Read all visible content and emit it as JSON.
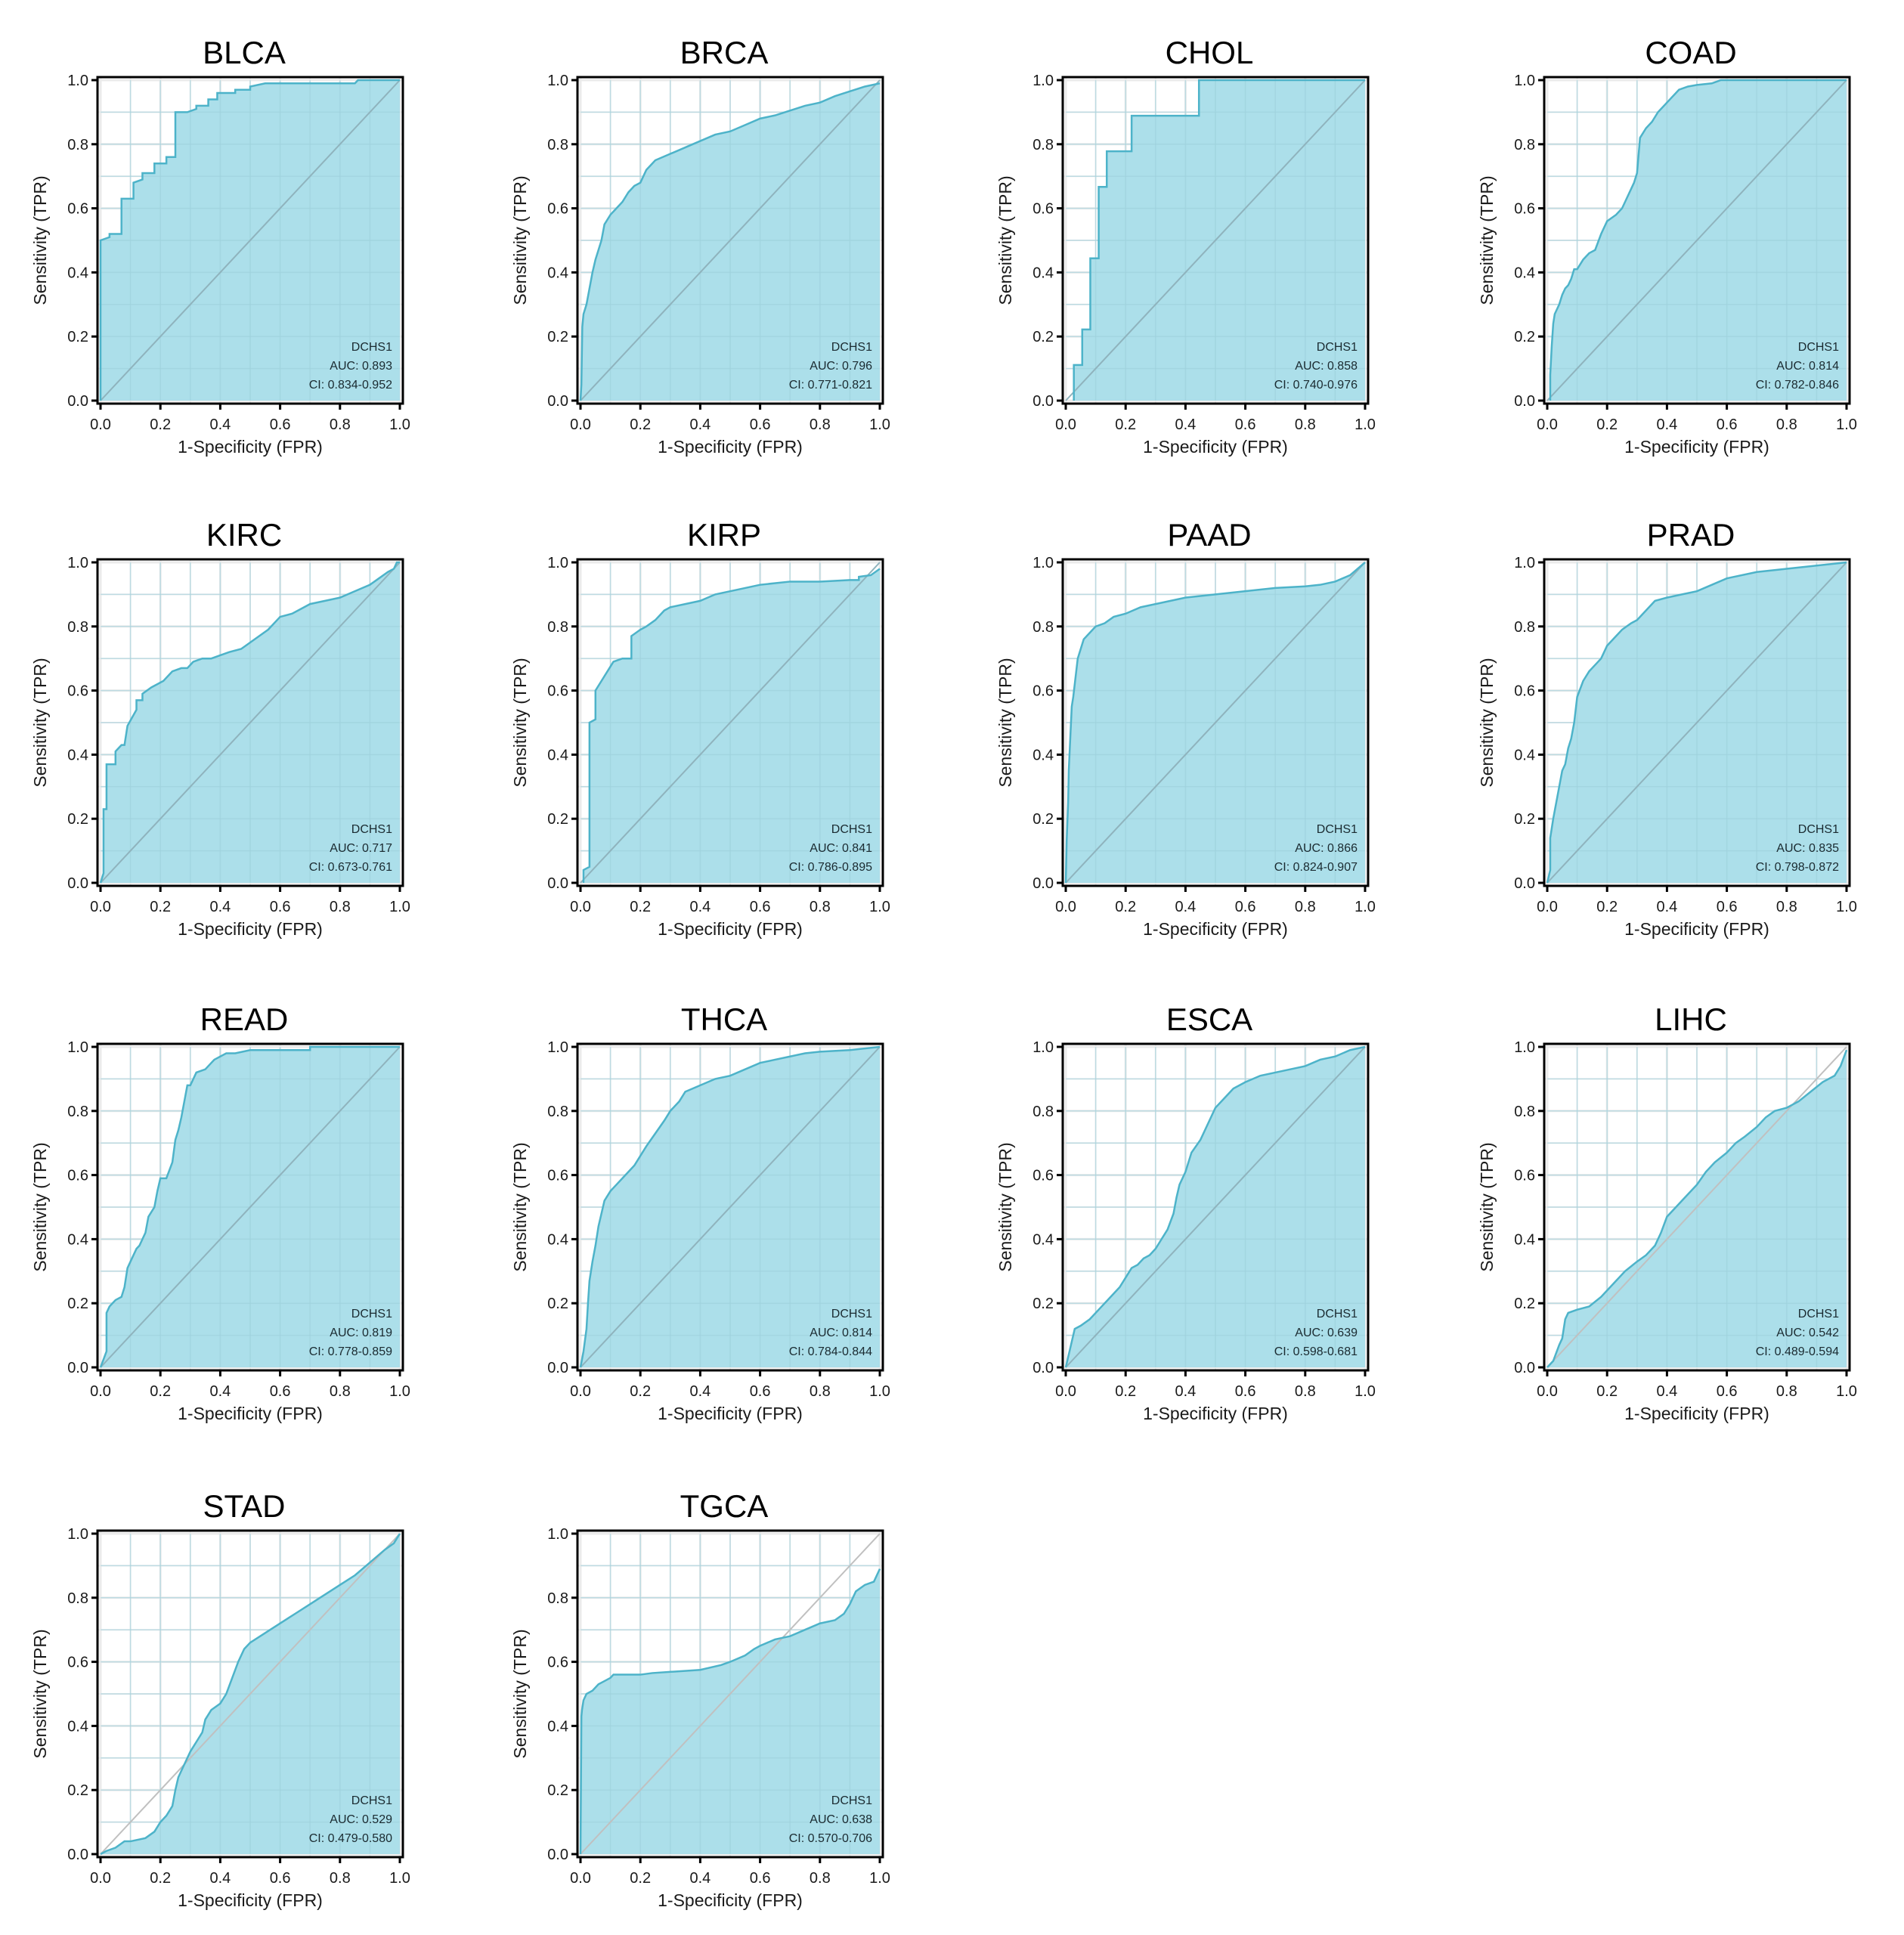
{
  "figure": {
    "legend_gene": "DCHS1",
    "xlabel": "1-Specificity (FPR)",
    "ylabel": "Sensitivity (TPR)",
    "ticks": [
      "0.0",
      "0.2",
      "0.4",
      "0.6",
      "0.8",
      "1.0"
    ],
    "colors": {
      "fill": "#a8dde9",
      "line": "#4db3c9",
      "diag": "#8fb3bd",
      "diag_light": "#c0c0c0",
      "grid": "#ebebeb",
      "axis": "#000000"
    }
  },
  "chart_data": [
    {
      "type": "area",
      "title": "BLCA",
      "legend": [
        "DCHS1",
        "AUC: 0.893",
        "CI: 0.834-0.952"
      ],
      "auc": 0.893,
      "xlim": [
        0,
        1
      ],
      "ylim": [
        0,
        1
      ],
      "grid": true,
      "legend_position": "bottom-right",
      "x": [
        0,
        0,
        0.03,
        0.03,
        0.07,
        0.07,
        0.11,
        0.11,
        0.14,
        0.14,
        0.18,
        0.18,
        0.22,
        0.22,
        0.25,
        0.25,
        0.29,
        0.32,
        0.32,
        0.36,
        0.36,
        0.39,
        0.39,
        0.45,
        0.45,
        0.5,
        0.5,
        0.55,
        0.6,
        0.85,
        0.86,
        1
      ],
      "y": [
        0,
        0.5,
        0.51,
        0.52,
        0.52,
        0.63,
        0.63,
        0.68,
        0.69,
        0.71,
        0.71,
        0.74,
        0.74,
        0.76,
        0.76,
        0.9,
        0.9,
        0.91,
        0.92,
        0.92,
        0.94,
        0.94,
        0.96,
        0.96,
        0.97,
        0.97,
        0.98,
        0.99,
        0.99,
        0.99,
        1,
        1
      ]
    },
    {
      "type": "area",
      "title": "BRCA",
      "legend": [
        "DCHS1",
        "AUC: 0.796",
        "CI: 0.771-0.821"
      ],
      "auc": 0.796,
      "xlim": [
        0,
        1
      ],
      "ylim": [
        0,
        1
      ],
      "grid": true,
      "legend_position": "bottom-right",
      "x": [
        0,
        0.003,
        0.006,
        0.01,
        0.02,
        0.03,
        0.04,
        0.05,
        0.06,
        0.07,
        0.08,
        0.1,
        0.12,
        0.14,
        0.16,
        0.18,
        0.2,
        0.22,
        0.25,
        0.3,
        0.35,
        0.4,
        0.45,
        0.5,
        0.55,
        0.6,
        0.65,
        0.7,
        0.75,
        0.8,
        0.85,
        0.9,
        0.95,
        1
      ],
      "y": [
        0,
        0.05,
        0.23,
        0.27,
        0.3,
        0.35,
        0.4,
        0.44,
        0.47,
        0.5,
        0.55,
        0.58,
        0.6,
        0.62,
        0.65,
        0.67,
        0.68,
        0.72,
        0.75,
        0.77,
        0.79,
        0.81,
        0.83,
        0.84,
        0.86,
        0.88,
        0.89,
        0.905,
        0.92,
        0.93,
        0.95,
        0.965,
        0.98,
        0.99
      ]
    },
    {
      "type": "area",
      "title": "CHOL",
      "legend": [
        "DCHS1",
        "AUC: 0.858",
        "CI: 0.740-0.976"
      ],
      "auc": 0.858,
      "xlim": [
        0,
        1
      ],
      "ylim": [
        0,
        1
      ],
      "grid": true,
      "legend_position": "bottom-right",
      "x": [
        0.027,
        0.027,
        0.055,
        0.055,
        0.082,
        0.082,
        0.11,
        0.11,
        0.137,
        0.137,
        0.22,
        0.22,
        0.445,
        0.445,
        1
      ],
      "y": [
        0,
        0.111,
        0.111,
        0.222,
        0.222,
        0.444,
        0.444,
        0.667,
        0.667,
        0.778,
        0.778,
        0.889,
        0.889,
        1,
        1
      ]
    },
    {
      "type": "area",
      "title": "COAD",
      "legend": [
        "DCHS1",
        "AUC: 0.814",
        "CI: 0.782-0.846"
      ],
      "auc": 0.814,
      "xlim": [
        0,
        1
      ],
      "ylim": [
        0,
        1
      ],
      "grid": true,
      "legend_position": "bottom-right",
      "x": [
        0.01,
        0.01,
        0.015,
        0.02,
        0.025,
        0.03,
        0.04,
        0.05,
        0.06,
        0.07,
        0.08,
        0.09,
        0.1,
        0.12,
        0.14,
        0.16,
        0.18,
        0.2,
        0.23,
        0.25,
        0.27,
        0.29,
        0.3,
        0.31,
        0.33,
        0.35,
        0.37,
        0.4,
        0.42,
        0.44,
        0.47,
        0.5,
        0.55,
        0.58,
        0.7,
        0.88,
        0.9,
        1
      ],
      "y": [
        0,
        0.08,
        0.17,
        0.24,
        0.27,
        0.28,
        0.3,
        0.33,
        0.35,
        0.36,
        0.38,
        0.41,
        0.41,
        0.44,
        0.46,
        0.47,
        0.52,
        0.56,
        0.58,
        0.6,
        0.64,
        0.68,
        0.71,
        0.82,
        0.85,
        0.87,
        0.9,
        0.93,
        0.95,
        0.97,
        0.98,
        0.985,
        0.99,
        1,
        1,
        1,
        1,
        1
      ]
    },
    {
      "type": "area",
      "title": "KIRC",
      "legend": [
        "DCHS1",
        "AUC: 0.717",
        "CI: 0.673-0.761"
      ],
      "auc": 0.717,
      "xlim": [
        0,
        1
      ],
      "ylim": [
        0,
        1
      ],
      "grid": true,
      "legend_position": "bottom-right",
      "x": [
        0,
        0.01,
        0.01,
        0.02,
        0.02,
        0.05,
        0.05,
        0.07,
        0.08,
        0.09,
        0.09,
        0.12,
        0.12,
        0.14,
        0.14,
        0.17,
        0.19,
        0.21,
        0.24,
        0.27,
        0.29,
        0.31,
        0.34,
        0.37,
        0.4,
        0.43,
        0.47,
        0.5,
        0.53,
        0.56,
        0.6,
        0.64,
        0.66,
        0.7,
        0.75,
        0.8,
        0.85,
        0.9,
        0.93,
        0.96,
        0.98,
        0.99,
        1
      ],
      "y": [
        0,
        0.03,
        0.23,
        0.23,
        0.37,
        0.37,
        0.41,
        0.43,
        0.43,
        0.49,
        0.49,
        0.54,
        0.57,
        0.57,
        0.59,
        0.61,
        0.62,
        0.63,
        0.66,
        0.67,
        0.67,
        0.69,
        0.7,
        0.7,
        0.71,
        0.72,
        0.73,
        0.75,
        0.77,
        0.79,
        0.83,
        0.84,
        0.85,
        0.87,
        0.88,
        0.89,
        0.91,
        0.93,
        0.95,
        0.97,
        0.98,
        1,
        1
      ]
    },
    {
      "type": "area",
      "title": "KIRP",
      "legend": [
        "DCHS1",
        "AUC: 0.841",
        "CI: 0.786-0.895"
      ],
      "auc": 0.841,
      "xlim": [
        0,
        1
      ],
      "ylim": [
        0,
        1
      ],
      "grid": true,
      "legend_position": "bottom-right",
      "x": [
        0.01,
        0.01,
        0.03,
        0.03,
        0.05,
        0.05,
        0.07,
        0.09,
        0.11,
        0.14,
        0.17,
        0.17,
        0.2,
        0.22,
        0.25,
        0.28,
        0.3,
        0.35,
        0.4,
        0.45,
        0.5,
        0.55,
        0.6,
        0.7,
        0.8,
        0.9,
        0.93,
        0.93,
        0.97,
        1
      ],
      "y": [
        0,
        0.04,
        0.05,
        0.5,
        0.51,
        0.6,
        0.63,
        0.66,
        0.69,
        0.7,
        0.7,
        0.77,
        0.79,
        0.8,
        0.82,
        0.85,
        0.86,
        0.87,
        0.88,
        0.9,
        0.91,
        0.92,
        0.93,
        0.94,
        0.94,
        0.945,
        0.945,
        0.955,
        0.96,
        0.98
      ]
    },
    {
      "type": "area",
      "title": "PAAD",
      "legend": [
        "DCHS1",
        "AUC: 0.866",
        "CI: 0.824-0.907"
      ],
      "auc": 0.866,
      "xlim": [
        0,
        1
      ],
      "ylim": [
        0,
        1
      ],
      "grid": true,
      "legend_position": "bottom-right",
      "x": [
        0,
        0.003,
        0.008,
        0.01,
        0.015,
        0.02,
        0.025,
        0.03,
        0.035,
        0.04,
        0.05,
        0.06,
        0.08,
        0.1,
        0.13,
        0.16,
        0.2,
        0.25,
        0.3,
        0.35,
        0.4,
        0.45,
        0.5,
        0.6,
        0.7,
        0.8,
        0.85,
        0.9,
        0.95,
        1
      ],
      "y": [
        0,
        0.13,
        0.25,
        0.35,
        0.45,
        0.55,
        0.58,
        0.62,
        0.66,
        0.7,
        0.73,
        0.76,
        0.78,
        0.8,
        0.81,
        0.83,
        0.84,
        0.86,
        0.87,
        0.88,
        0.89,
        0.895,
        0.9,
        0.91,
        0.92,
        0.925,
        0.93,
        0.94,
        0.96,
        1
      ]
    },
    {
      "type": "area",
      "title": "PRAD",
      "legend": [
        "DCHS1",
        "AUC: 0.835",
        "CI: 0.798-0.872"
      ],
      "auc": 0.835,
      "xlim": [
        0,
        1
      ],
      "ylim": [
        0,
        1
      ],
      "grid": true,
      "legend_position": "bottom-right",
      "x": [
        0,
        0.01,
        0.01,
        0.02,
        0.03,
        0.04,
        0.05,
        0.06,
        0.07,
        0.08,
        0.09,
        0.1,
        0.12,
        0.14,
        0.16,
        0.18,
        0.2,
        0.22,
        0.25,
        0.28,
        0.3,
        0.33,
        0.36,
        0.4,
        0.45,
        0.5,
        0.55,
        0.6,
        0.7,
        0.8,
        0.9,
        1
      ],
      "y": [
        0,
        0.04,
        0.14,
        0.2,
        0.25,
        0.3,
        0.35,
        0.37,
        0.42,
        0.45,
        0.5,
        0.58,
        0.63,
        0.66,
        0.68,
        0.7,
        0.74,
        0.76,
        0.79,
        0.81,
        0.82,
        0.85,
        0.88,
        0.89,
        0.9,
        0.91,
        0.93,
        0.95,
        0.97,
        0.98,
        0.99,
        1
      ]
    },
    {
      "type": "area",
      "title": "READ",
      "legend": [
        "DCHS1",
        "AUC: 0.819",
        "CI: 0.778-0.859"
      ],
      "auc": 0.819,
      "xlim": [
        0,
        1
      ],
      "ylim": [
        0,
        1
      ],
      "grid": true,
      "legend_position": "bottom-right",
      "x": [
        0,
        0.02,
        0.02,
        0.03,
        0.05,
        0.07,
        0.08,
        0.09,
        0.1,
        0.12,
        0.13,
        0.15,
        0.16,
        0.18,
        0.19,
        0.2,
        0.22,
        0.24,
        0.25,
        0.26,
        0.27,
        0.28,
        0.29,
        0.3,
        0.32,
        0.35,
        0.37,
        0.38,
        0.4,
        0.42,
        0.45,
        0.5,
        0.6,
        0.7,
        0.7,
        1
      ],
      "y": [
        0,
        0.05,
        0.17,
        0.19,
        0.21,
        0.22,
        0.25,
        0.31,
        0.33,
        0.37,
        0.38,
        0.42,
        0.47,
        0.5,
        0.55,
        0.59,
        0.59,
        0.64,
        0.71,
        0.74,
        0.78,
        0.83,
        0.88,
        0.88,
        0.92,
        0.93,
        0.95,
        0.96,
        0.97,
        0.98,
        0.98,
        0.99,
        0.99,
        0.99,
        1,
        1
      ]
    },
    {
      "type": "area",
      "title": "THCA",
      "legend": [
        "DCHS1",
        "AUC: 0.814",
        "CI: 0.784-0.844"
      ],
      "auc": 0.814,
      "xlim": [
        0,
        1
      ],
      "ylim": [
        0,
        1
      ],
      "grid": true,
      "legend_position": "bottom-right",
      "x": [
        0,
        0.01,
        0.02,
        0.025,
        0.03,
        0.04,
        0.05,
        0.06,
        0.07,
        0.08,
        0.1,
        0.12,
        0.15,
        0.18,
        0.2,
        0.22,
        0.25,
        0.28,
        0.3,
        0.33,
        0.35,
        0.4,
        0.45,
        0.5,
        0.55,
        0.6,
        0.65,
        0.7,
        0.75,
        0.8,
        0.9,
        1
      ],
      "y": [
        0,
        0.05,
        0.12,
        0.2,
        0.27,
        0.33,
        0.38,
        0.44,
        0.48,
        0.52,
        0.55,
        0.57,
        0.6,
        0.63,
        0.66,
        0.69,
        0.73,
        0.77,
        0.8,
        0.83,
        0.86,
        0.88,
        0.9,
        0.91,
        0.93,
        0.95,
        0.96,
        0.97,
        0.98,
        0.985,
        0.99,
        1
      ]
    },
    {
      "type": "area",
      "title": "ESCA",
      "legend": [
        "DCHS1",
        "AUC: 0.639",
        "CI: 0.598-0.681"
      ],
      "auc": 0.639,
      "xlim": [
        0,
        1
      ],
      "ylim": [
        0,
        1
      ],
      "grid": true,
      "legend_position": "bottom-right",
      "x": [
        0,
        0.01,
        0.02,
        0.03,
        0.05,
        0.08,
        0.1,
        0.12,
        0.14,
        0.16,
        0.18,
        0.2,
        0.22,
        0.24,
        0.26,
        0.28,
        0.3,
        0.32,
        0.34,
        0.36,
        0.37,
        0.38,
        0.4,
        0.42,
        0.45,
        0.48,
        0.5,
        0.53,
        0.56,
        0.6,
        0.65,
        0.7,
        0.75,
        0.8,
        0.85,
        0.9,
        0.95,
        1
      ],
      "y": [
        0,
        0.04,
        0.08,
        0.12,
        0.13,
        0.15,
        0.17,
        0.19,
        0.21,
        0.23,
        0.25,
        0.28,
        0.31,
        0.32,
        0.34,
        0.35,
        0.37,
        0.4,
        0.43,
        0.48,
        0.53,
        0.57,
        0.61,
        0.67,
        0.71,
        0.77,
        0.81,
        0.84,
        0.87,
        0.89,
        0.91,
        0.92,
        0.93,
        0.94,
        0.96,
        0.97,
        0.99,
        1
      ]
    },
    {
      "type": "area",
      "title": "LIHC",
      "legend": [
        "DCHS1",
        "AUC: 0.542",
        "CI: 0.489-0.594"
      ],
      "auc": 0.542,
      "xlim": [
        0,
        1
      ],
      "ylim": [
        0,
        1
      ],
      "grid": true,
      "legend_position": "bottom-right",
      "x": [
        0,
        0.02,
        0.04,
        0.05,
        0.06,
        0.07,
        0.1,
        0.14,
        0.18,
        0.22,
        0.26,
        0.3,
        0.33,
        0.36,
        0.38,
        0.4,
        0.43,
        0.46,
        0.5,
        0.53,
        0.56,
        0.6,
        0.63,
        0.66,
        0.7,
        0.73,
        0.76,
        0.8,
        0.84,
        0.88,
        0.92,
        0.96,
        0.98,
        1
      ],
      "y": [
        0,
        0.02,
        0.07,
        0.09,
        0.15,
        0.17,
        0.18,
        0.19,
        0.22,
        0.26,
        0.3,
        0.33,
        0.35,
        0.38,
        0.42,
        0.47,
        0.5,
        0.53,
        0.57,
        0.61,
        0.64,
        0.67,
        0.7,
        0.72,
        0.75,
        0.78,
        0.8,
        0.81,
        0.83,
        0.86,
        0.89,
        0.91,
        0.94,
        0.99
      ]
    },
    {
      "type": "area",
      "title": "STAD",
      "legend": [
        "DCHS1",
        "AUC: 0.529",
        "CI: 0.479-0.580"
      ],
      "auc": 0.529,
      "xlim": [
        0,
        1
      ],
      "ylim": [
        0,
        1
      ],
      "grid": true,
      "legend_position": "bottom-right",
      "x": [
        0,
        0.02,
        0.05,
        0.08,
        0.1,
        0.15,
        0.18,
        0.2,
        0.22,
        0.24,
        0.25,
        0.26,
        0.28,
        0.3,
        0.32,
        0.34,
        0.35,
        0.37,
        0.4,
        0.42,
        0.44,
        0.46,
        0.48,
        0.5,
        0.55,
        0.6,
        0.65,
        0.7,
        0.75,
        0.8,
        0.85,
        0.9,
        0.95,
        0.98,
        1
      ],
      "y": [
        0,
        0.01,
        0.02,
        0.04,
        0.04,
        0.05,
        0.07,
        0.1,
        0.12,
        0.15,
        0.2,
        0.24,
        0.28,
        0.32,
        0.35,
        0.38,
        0.42,
        0.45,
        0.47,
        0.5,
        0.55,
        0.6,
        0.64,
        0.66,
        0.69,
        0.72,
        0.75,
        0.78,
        0.81,
        0.84,
        0.87,
        0.91,
        0.95,
        0.97,
        1
      ]
    },
    {
      "type": "area",
      "title": "TGCA",
      "legend": [
        "DCHS1",
        "AUC: 0.638",
        "CI: 0.570-0.706"
      ],
      "auc": 0.638,
      "xlim": [
        0,
        1
      ],
      "ylim": [
        0,
        1
      ],
      "grid": true,
      "legend_position": "bottom-right",
      "x": [
        0,
        0.003,
        0.005,
        0.01,
        0.02,
        0.04,
        0.06,
        0.08,
        0.1,
        0.11,
        0.2,
        0.24,
        0.32,
        0.4,
        0.47,
        0.5,
        0.55,
        0.58,
        0.6,
        0.65,
        0.7,
        0.75,
        0.8,
        0.85,
        0.88,
        0.9,
        0.92,
        0.95,
        0.98,
        1
      ],
      "y": [
        0,
        0.43,
        0.45,
        0.48,
        0.5,
        0.51,
        0.53,
        0.54,
        0.55,
        0.56,
        0.56,
        0.565,
        0.57,
        0.575,
        0.59,
        0.6,
        0.62,
        0.64,
        0.65,
        0.67,
        0.68,
        0.7,
        0.72,
        0.73,
        0.75,
        0.78,
        0.82,
        0.84,
        0.85,
        0.89
      ]
    }
  ]
}
